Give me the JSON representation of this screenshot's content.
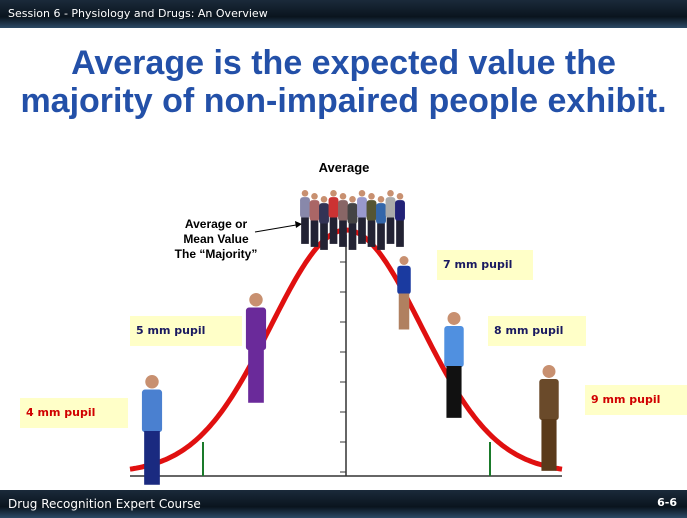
{
  "header": {
    "text": "Session 6 - Physiology and Drugs: An Overview"
  },
  "title": {
    "lines": [
      "Average is the expected value the",
      "majority of non-impaired people exhibit."
    ]
  },
  "diagram": {
    "peak_label": "Average",
    "annotation": [
      "Average or",
      "Mean Value",
      "The “Majority”"
    ],
    "pupil_labels": [
      "4 mm pupil",
      "5 mm pupil",
      "7 mm pupil",
      "8 mm pupil",
      "9 mm pupil"
    ]
  },
  "footer": {
    "course": "Drug Recognition Expert Course",
    "page": "6-6"
  }
}
